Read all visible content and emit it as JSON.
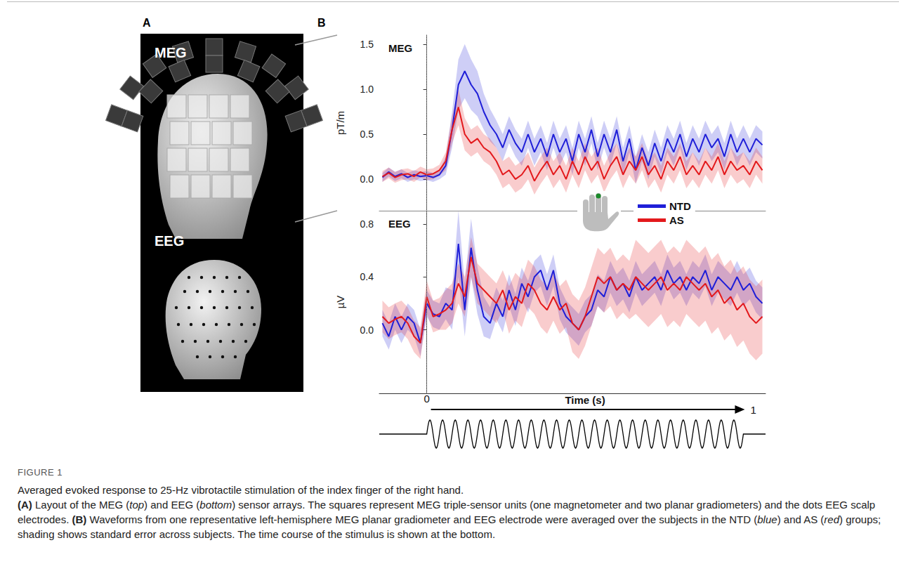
{
  "panel_labels": [
    "A",
    "B"
  ],
  "sensor_labels": [
    "MEG",
    "EEG"
  ],
  "stimulus": {
    "axis_label": "Time (s)",
    "start": 0,
    "end": 1,
    "frequency": 25
  },
  "chart_data": [
    {
      "type": "line",
      "title": "MEG",
      "ylabel": "pT/m",
      "tick_labels": "y",
      "legend": "center",
      "xlim": [
        -0.15,
        1.07
      ],
      "ylim": [
        -0.35,
        1.6
      ],
      "yticks": [
        {
          "value": 0,
          "label": "0.0"
        },
        {
          "value": 0.5,
          "label": "0.5"
        },
        {
          "value": 1,
          "label": "1.0"
        },
        {
          "value": 1.5,
          "label": "1.5"
        }
      ],
      "x": [
        -0.14,
        -0.12,
        -0.1,
        -0.08,
        -0.06,
        -0.04,
        -0.02,
        0,
        0.02,
        0.04,
        0.06,
        0.08,
        0.1,
        0.12,
        0.14,
        0.16,
        0.18,
        0.2,
        0.22,
        0.24,
        0.26,
        0.28,
        0.3,
        0.32,
        0.34,
        0.36,
        0.38,
        0.4,
        0.42,
        0.44,
        0.46,
        0.48,
        0.5,
        0.52,
        0.54,
        0.56,
        0.58,
        0.6,
        0.62,
        0.64,
        0.66,
        0.68,
        0.7,
        0.72,
        0.74,
        0.76,
        0.78,
        0.8,
        0.82,
        0.84,
        0.86,
        0.88,
        0.9,
        0.92,
        0.94,
        0.96,
        0.98,
        1,
        1.02,
        1.04,
        1.06
      ],
      "series": [
        {
          "name": "NTD",
          "color": "#1f1fd8",
          "values": [
            0.02,
            0.08,
            0.03,
            0.06,
            0.02,
            0.05,
            0.03,
            0.04,
            0.02,
            0.05,
            0.15,
            0.55,
            1.05,
            1.2,
            1.05,
            0.95,
            0.75,
            0.6,
            0.5,
            0.35,
            0.55,
            0.4,
            0.3,
            0.5,
            0.3,
            0.45,
            0.25,
            0.5,
            0.3,
            0.45,
            0.2,
            0.5,
            0.3,
            0.55,
            0.25,
            0.5,
            0.3,
            0.55,
            0.2,
            0.45,
            0.1,
            0.35,
            0.15,
            0.4,
            0.2,
            0.45,
            0.3,
            0.5,
            0.25,
            0.45,
            0.3,
            0.5,
            0.35,
            0.45,
            0.25,
            0.5,
            0.3,
            0.45,
            0.3,
            0.45,
            0.38
          ],
          "error": [
            0.05,
            0.05,
            0.05,
            0.05,
            0.05,
            0.05,
            0.05,
            0.05,
            0.05,
            0.05,
            0.1,
            0.2,
            0.28,
            0.3,
            0.28,
            0.25,
            0.2,
            0.18,
            0.15,
            0.15,
            0.15,
            0.15,
            0.15,
            0.15,
            0.15,
            0.15,
            0.15,
            0.15,
            0.15,
            0.15,
            0.15,
            0.15,
            0.15,
            0.15,
            0.15,
            0.15,
            0.15,
            0.15,
            0.15,
            0.15,
            0.15,
            0.15,
            0.15,
            0.15,
            0.15,
            0.15,
            0.15,
            0.15,
            0.15,
            0.15,
            0.15,
            0.15,
            0.15,
            0.15,
            0.15,
            0.15,
            0.15,
            0.15,
            0.15,
            0.15,
            0.15
          ]
        },
        {
          "name": "AS",
          "color": "#e3191c",
          "values": [
            0.03,
            0.07,
            0.02,
            0.05,
            0.06,
            0.03,
            0.08,
            0.05,
            0.06,
            0.1,
            0.2,
            0.55,
            0.8,
            0.5,
            0.4,
            0.45,
            0.35,
            0.3,
            0.2,
            0.05,
            0.1,
            0,
            0.05,
            0.15,
            -0.02,
            0.1,
            0.2,
            0.05,
            0.15,
            0,
            0.2,
            0.05,
            0.25,
            0.1,
            0.2,
            0,
            0.15,
            0.25,
            0.05,
            0.2,
            0.1,
            0.25,
            0.05,
            0.15,
            0,
            0.2,
            0.1,
            0.25,
            0.05,
            0.15,
            0.05,
            0.2,
            0.1,
            0.25,
            0.05,
            0.2,
            0.1,
            0.15,
            0.05,
            0.2,
            0.1
          ],
          "error": [
            0.06,
            0.06,
            0.06,
            0.06,
            0.06,
            0.06,
            0.06,
            0.06,
            0.06,
            0.06,
            0.1,
            0.15,
            0.2,
            0.18,
            0.15,
            0.15,
            0.15,
            0.15,
            0.15,
            0.15,
            0.15,
            0.15,
            0.15,
            0.15,
            0.15,
            0.15,
            0.15,
            0.15,
            0.15,
            0.15,
            0.15,
            0.15,
            0.15,
            0.15,
            0.15,
            0.15,
            0.15,
            0.15,
            0.15,
            0.15,
            0.15,
            0.15,
            0.15,
            0.15,
            0.15,
            0.15,
            0.15,
            0.15,
            0.15,
            0.15,
            0.15,
            0.15,
            0.15,
            0.15,
            0.15,
            0.15,
            0.15,
            0.15,
            0.15,
            0.15,
            0.15
          ]
        }
      ]
    },
    {
      "type": "line",
      "title": "EEG",
      "ylabel": "µV",
      "tick_labels": "y",
      "xlim": [
        -0.15,
        1.07
      ],
      "ylim": [
        -0.48,
        0.9
      ],
      "yticks": [
        {
          "value": 0,
          "label": "0.0"
        },
        {
          "value": 0.4,
          "label": "0.4"
        },
        {
          "value": 0.8,
          "label": "0.8"
        }
      ],
      "x": [
        -0.14,
        -0.12,
        -0.1,
        -0.08,
        -0.06,
        -0.04,
        -0.02,
        0,
        0.02,
        0.04,
        0.06,
        0.08,
        0.1,
        0.12,
        0.14,
        0.16,
        0.18,
        0.2,
        0.22,
        0.24,
        0.26,
        0.28,
        0.3,
        0.32,
        0.34,
        0.36,
        0.38,
        0.4,
        0.42,
        0.44,
        0.46,
        0.48,
        0.5,
        0.52,
        0.54,
        0.56,
        0.58,
        0.6,
        0.62,
        0.64,
        0.66,
        0.68,
        0.7,
        0.72,
        0.74,
        0.76,
        0.78,
        0.8,
        0.82,
        0.84,
        0.86,
        0.88,
        0.9,
        0.92,
        0.94,
        0.96,
        0.98,
        1,
        1.02,
        1.04,
        1.06
      ],
      "series": [
        {
          "name": "NTD",
          "color": "#1f1fd8",
          "values": [
            0.05,
            -0.05,
            0.1,
            0,
            0.1,
            0.05,
            -0.1,
            0.2,
            0.12,
            0.1,
            0.2,
            0.15,
            0.65,
            0.15,
            0.62,
            0.3,
            0.1,
            0.05,
            0.2,
            0.1,
            0.3,
            0.15,
            0.35,
            0.25,
            0.4,
            0.45,
            0.3,
            0.45,
            0.2,
            0.1,
            0.05,
            0,
            0.1,
            0.15,
            0.3,
            0.25,
            0.4,
            0.3,
            0.35,
            0.25,
            0.4,
            0.3,
            0.35,
            0.4,
            0.3,
            0.45,
            0.35,
            0.4,
            0.3,
            0.4,
            0.35,
            0.45,
            0.3,
            0.4,
            0.35,
            0.3,
            0.4,
            0.3,
            0.35,
            0.25,
            0.2
          ],
          "error": [
            0.1,
            0.1,
            0.1,
            0.1,
            0.1,
            0.1,
            0.1,
            0.1,
            0.1,
            0.1,
            0.12,
            0.15,
            0.25,
            0.2,
            0.22,
            0.18,
            0.15,
            0.12,
            0.12,
            0.12,
            0.12,
            0.12,
            0.12,
            0.12,
            0.12,
            0.12,
            0.12,
            0.12,
            0.12,
            0.12,
            0.12,
            0.12,
            0.12,
            0.12,
            0.12,
            0.12,
            0.12,
            0.12,
            0.12,
            0.12,
            0.12,
            0.12,
            0.12,
            0.12,
            0.12,
            0.12,
            0.12,
            0.12,
            0.12,
            0.12,
            0.12,
            0.12,
            0.12,
            0.12,
            0.12,
            0.12,
            0.12,
            0.12,
            0.12,
            0.12,
            0.12
          ]
        },
        {
          "name": "AS",
          "color": "#e3191c",
          "values": [
            0.1,
            0.05,
            0.08,
            0.1,
            0.05,
            -0.05,
            -0.1,
            0.25,
            0.1,
            0.12,
            0.15,
            0.2,
            0.35,
            0.25,
            0.55,
            0.35,
            0.3,
            0.25,
            0.2,
            0.3,
            0.15,
            0.25,
            0.2,
            0.35,
            0.3,
            0.2,
            0.15,
            0.25,
            0.15,
            0.2,
            0.05,
            0,
            0.1,
            0.25,
            0.4,
            0.35,
            0.4,
            0.3,
            0.35,
            0.3,
            0.4,
            0.35,
            0.3,
            0.35,
            0.4,
            0.3,
            0.35,
            0.3,
            0.4,
            0.35,
            0.3,
            0.35,
            0.25,
            0.3,
            0.2,
            0.25,
            0.15,
            0.2,
            0.1,
            0.05,
            0.1
          ],
          "error": [
            0.12,
            0.12,
            0.12,
            0.12,
            0.12,
            0.12,
            0.12,
            0.12,
            0.12,
            0.12,
            0.15,
            0.15,
            0.15,
            0.15,
            0.15,
            0.15,
            0.15,
            0.15,
            0.15,
            0.15,
            0.18,
            0.18,
            0.18,
            0.18,
            0.18,
            0.18,
            0.18,
            0.18,
            0.18,
            0.18,
            0.22,
            0.22,
            0.22,
            0.22,
            0.22,
            0.22,
            0.22,
            0.22,
            0.22,
            0.22,
            0.28,
            0.28,
            0.28,
            0.28,
            0.28,
            0.28,
            0.28,
            0.28,
            0.28,
            0.28,
            0.28,
            0.28,
            0.28,
            0.28,
            0.28,
            0.28,
            0.28,
            0.28,
            0.28,
            0.28,
            0.28
          ]
        }
      ]
    }
  ],
  "caption": {
    "label": "FIGURE 1",
    "paragraphs": [
      [
        {
          "text": "Averaged evoked response to 25-Hz vibrotactile stimulation of the index finger of the right hand."
        }
      ],
      [
        {
          "text": "(A)",
          "style": "bold"
        },
        {
          "text": " Layout of the MEG ("
        },
        {
          "text": "top",
          "style": "italic"
        },
        {
          "text": ") and EEG ("
        },
        {
          "text": "bottom",
          "style": "italic"
        },
        {
          "text": ") sensor arrays. The squares represent MEG triple-sensor units (one magnetometer and two planar gradiometers) and the dots EEG scalp electrodes. "
        },
        {
          "text": "(B)",
          "style": "bold"
        },
        {
          "text": " Waveforms from one representative left-hemisphere MEG planar gradiometer and EEG electrode were averaged over the subjects in the NTD ("
        },
        {
          "text": "blue",
          "style": "italic"
        },
        {
          "text": ") and AS ("
        },
        {
          "text": "red",
          "style": "italic"
        },
        {
          "text": ") groups; shading shows standard error across subjects. The time course of the stimulus is shown at the bottom."
        }
      ]
    ]
  }
}
